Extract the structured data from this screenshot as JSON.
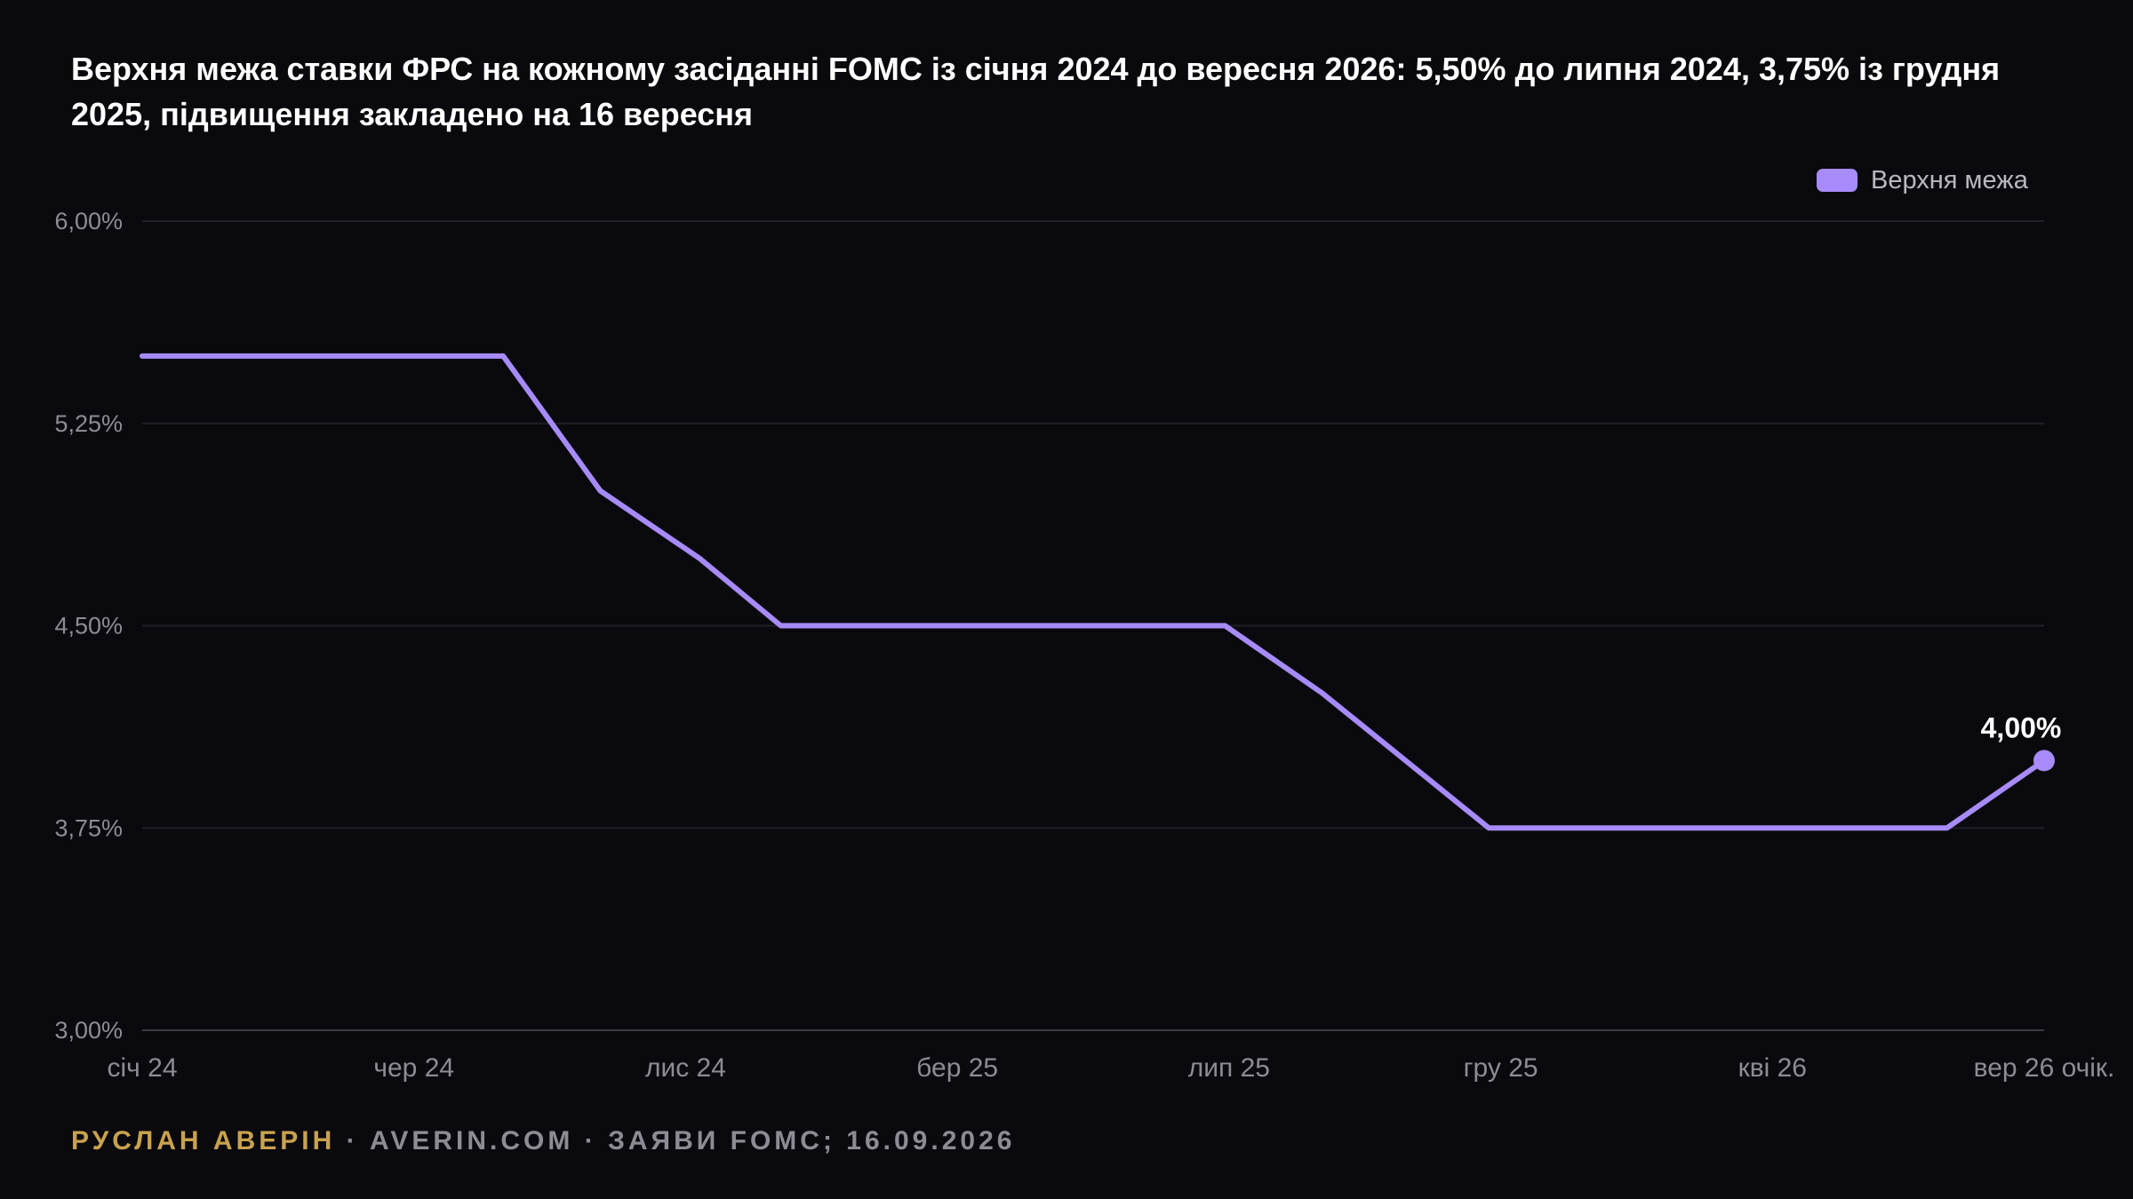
{
  "title": "Верхня межа ставки ФРС на кожному засіданні FOMC із січня 2024 до вересня 2026: 5,50% до липня 2024, 3,75% із грудня 2025, підвищення закладено на 16 вересня",
  "footer": {
    "author": "РУСЛАН АВЕРІН",
    "separator": " · ",
    "site": "AVERIN.COM",
    "source": "ЗАЯВИ FOMC; 16.09.2026"
  },
  "colors": {
    "background": "#0a0a0e",
    "series": "#a78bfa",
    "grid": "#1f1f26",
    "axis_text": "#8c8c94",
    "title": "#ffffff",
    "author": "#c9a24e"
  },
  "chart_data": {
    "type": "line",
    "x": [
      "2024-01-31",
      "2024-03-20",
      "2024-05-01",
      "2024-06-12",
      "2024-07-31",
      "2024-09-18",
      "2024-11-07",
      "2024-12-18",
      "2025-01-29",
      "2025-03-19",
      "2025-05-07",
      "2025-06-18",
      "2025-07-30",
      "2025-09-17",
      "2025-10-29",
      "2025-12-10",
      "2026-01-28",
      "2026-03-18",
      "2026-04-29",
      "2026-06-17",
      "2026-07-29",
      "2026-09-16"
    ],
    "series": [
      {
        "name": "Верхня межа",
        "values": [
          5.5,
          5.5,
          5.5,
          5.5,
          5.5,
          5.0,
          4.75,
          4.5,
          4.5,
          4.5,
          4.5,
          4.5,
          4.5,
          4.25,
          4.0,
          3.75,
          3.75,
          3.75,
          3.75,
          3.75,
          3.75,
          4.0
        ]
      }
    ],
    "xticks": [
      "січ 24",
      "чер 24",
      "лис 24",
      "бер 25",
      "лип 25",
      "гру 25",
      "кві 26",
      "вер 26 очік."
    ],
    "yticks": [
      "6,00%",
      "5,25%",
      "4,50%",
      "3,75%",
      "3,00%"
    ],
    "ylim": [
      3.0,
      6.0
    ],
    "end_label": "4,00%",
    "legend_position": "top-right",
    "grid": true,
    "xlabel": "",
    "ylabel": ""
  }
}
